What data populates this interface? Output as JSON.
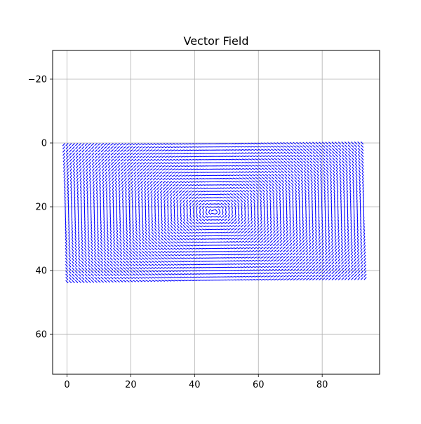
{
  "chart_data": {
    "type": "quiver",
    "title": "Vector Field",
    "xlabel": "",
    "ylabel": "",
    "xlim": [
      -4.5,
      98
    ],
    "ylim": [
      72.5,
      -29
    ],
    "y_axis_inverted": true,
    "grid": true,
    "x_ticks": [
      0,
      20,
      40,
      60,
      80
    ],
    "x_tick_labels": [
      "0",
      "20",
      "40",
      "60",
      "80"
    ],
    "y_ticks": [
      -20,
      0,
      20,
      40,
      60
    ],
    "y_tick_labels": [
      "−20",
      "0",
      "20",
      "40",
      "60"
    ],
    "arrow_color": "#0000ff",
    "grid_color": "#b0b0b0",
    "field_extent": {
      "corners": [
        [
          -1,
          0.5
        ],
        [
          92.5,
          0
        ],
        [
          93.5,
          42.5
        ],
        [
          0,
          43.5
        ]
      ],
      "cols": 94,
      "rows": 44
    },
    "vortex_center": [
      46,
      21.5
    ],
    "swirl": "counter-clockwise"
  }
}
